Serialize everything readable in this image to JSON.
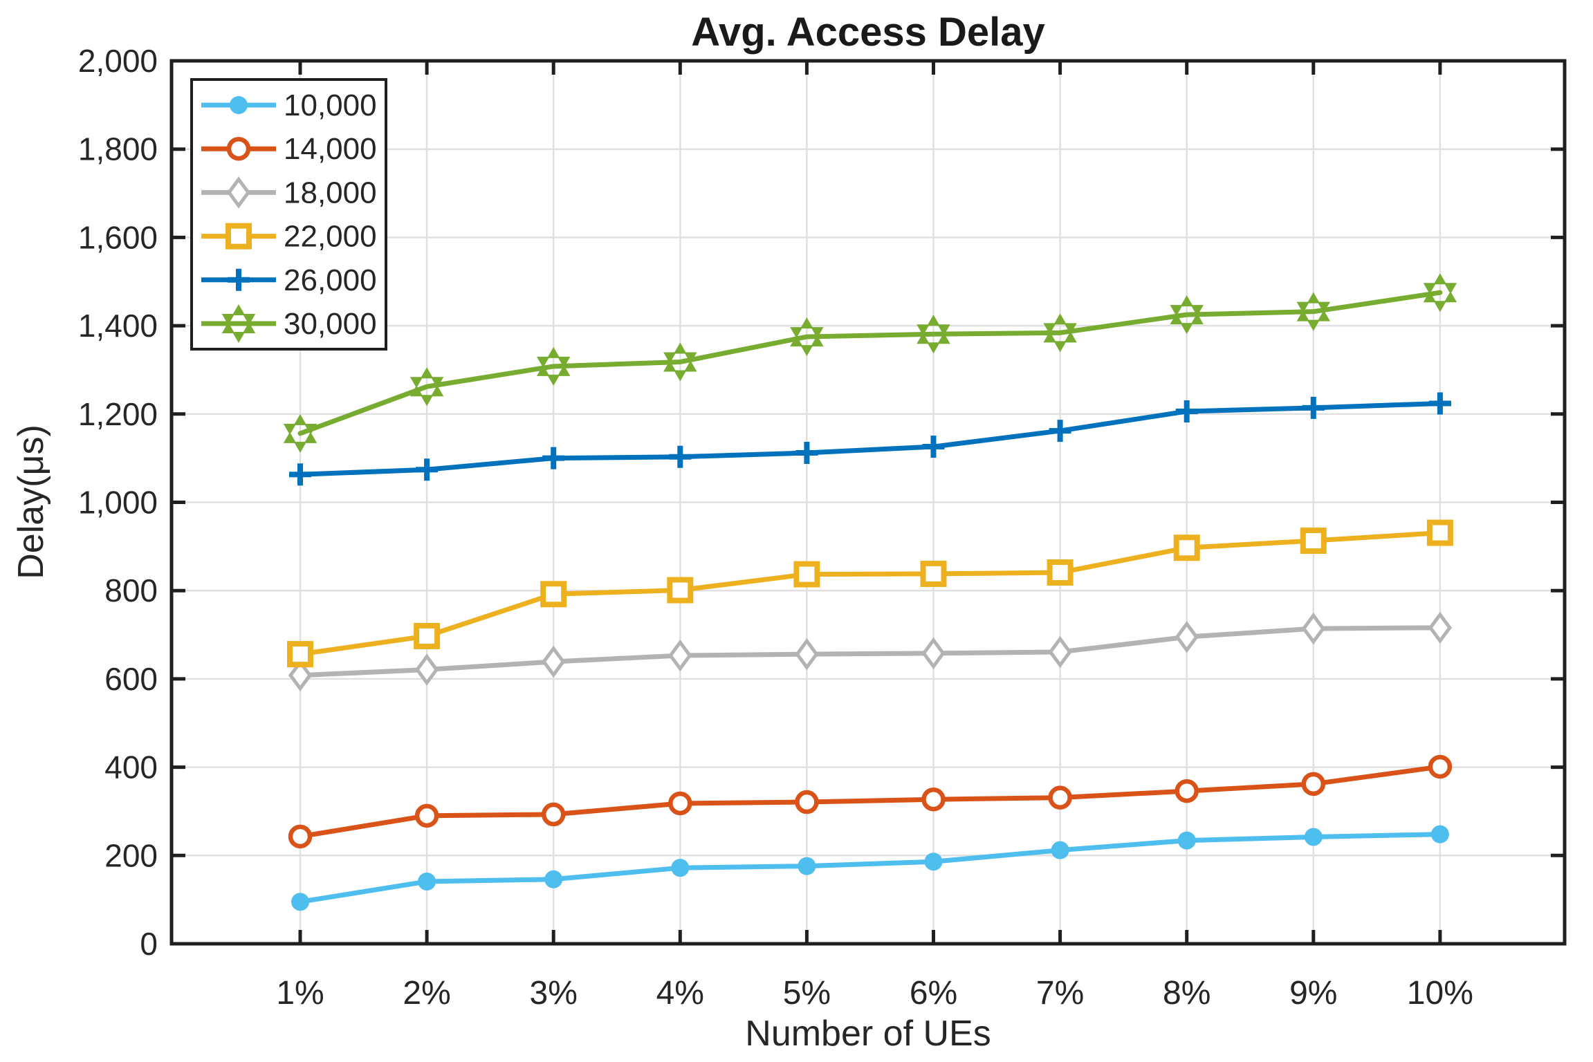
{
  "chart_data": {
    "type": "line",
    "title": "Avg. Access Delay",
    "xlabel": "Number of UEs",
    "ylabel": "Delay(μs)",
    "x_tick_labels": [
      "1%",
      "2%",
      "3%",
      "4%",
      "5%",
      "6%",
      "7%",
      "8%",
      "9%",
      "10%"
    ],
    "y_ticks": [
      0,
      200,
      400,
      600,
      800,
      1000,
      1200,
      1400,
      1600,
      1800,
      2000
    ],
    "y_tick_labels": [
      "0",
      "200",
      "400",
      "600",
      "800",
      "1,000",
      "1,200",
      "1,400",
      "1,600",
      "1,800",
      "2,000"
    ],
    "ylim": [
      0,
      2000
    ],
    "grid": true,
    "legend_position": "top-left",
    "series": [
      {
        "name": "10,000",
        "color": "#4DBEEE",
        "marker": "circle-filled",
        "values": [
          95,
          141,
          146,
          172,
          176,
          186,
          212,
          234,
          242,
          248
        ]
      },
      {
        "name": "14,000",
        "color": "#D95319",
        "marker": "circle-open",
        "values": [
          243,
          290,
          293,
          318,
          321,
          327,
          331,
          346,
          362,
          401
        ]
      },
      {
        "name": "18,000",
        "color": "#B3B3B3",
        "marker": "diamond-open",
        "values": [
          608,
          621,
          639,
          653,
          656,
          658,
          661,
          695,
          714,
          716
        ]
      },
      {
        "name": "22,000",
        "color": "#EDB120",
        "marker": "square-open",
        "values": [
          656,
          697,
          792,
          801,
          837,
          838,
          841,
          897,
          913,
          931
        ]
      },
      {
        "name": "26,000",
        "color": "#0072BD",
        "marker": "plus",
        "values": [
          1063,
          1074,
          1100,
          1103,
          1112,
          1126,
          1162,
          1206,
          1214,
          1224
        ]
      },
      {
        "name": "30,000",
        "color": "#77AC30",
        "marker": "hexagram",
        "values": [
          1156,
          1262,
          1308,
          1318,
          1375,
          1381,
          1384,
          1425,
          1432,
          1475
        ]
      }
    ],
    "colors": {
      "grid": "#E0E0E0",
      "axis": "#1F1F1F",
      "text": "#262626",
      "background": "#FFFFFF"
    }
  }
}
